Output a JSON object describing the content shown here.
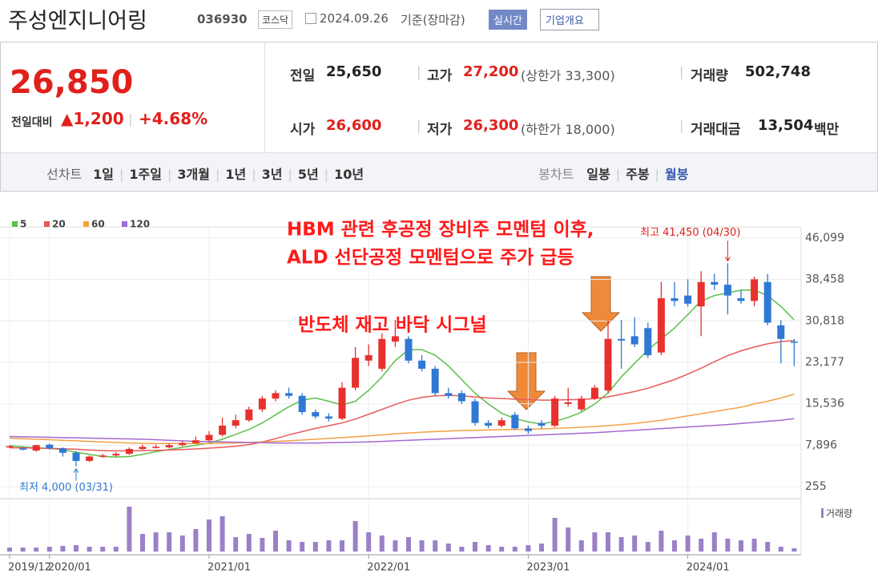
{
  "header": {
    "title": "주성엔지니어링",
    "code": "036930",
    "market": "코스닥",
    "date": "2024.09.26",
    "basis": "기준(장마감)",
    "realtime": "실시간",
    "company": "기업개요"
  },
  "quote": {
    "price": "26,850",
    "change_label": "전일대비",
    "change": "1,200",
    "change_pct": "+4.68%",
    "prev_label": "전일",
    "prev": "25,650",
    "high_label": "고가",
    "high": "27,200",
    "upper_limit": "(상한가 33,300)",
    "volume_label": "거래량",
    "volume": "502,748",
    "open_label": "시가",
    "open": "26,600",
    "low_label": "저가",
    "low": "26,300",
    "lower_limit": "(하한가 18,000)",
    "amount_label": "거래대금",
    "amount": "13,504",
    "amount_unit": "백만"
  },
  "tabs": {
    "line_label": "선차트",
    "line": [
      "1일",
      "1주일",
      "3개월",
      "1년",
      "3년",
      "5년",
      "10년"
    ],
    "candle_label": "봉차트",
    "candle": [
      "일봉",
      "주봉",
      "월봉"
    ]
  },
  "chart_data": {
    "type": "candlestick",
    "categories": [
      "2019/12",
      null,
      null,
      "2020/01",
      null,
      null,
      null,
      null,
      null,
      null,
      null,
      null,
      null,
      null,
      null,
      "2021/01",
      null,
      null,
      null,
      null,
      null,
      null,
      null,
      null,
      null,
      null,
      null,
      "2022/01",
      null,
      null,
      null,
      null,
      null,
      null,
      null,
      null,
      null,
      null,
      null,
      "2023/01",
      null,
      null,
      null,
      null,
      null,
      null,
      null,
      null,
      null,
      null,
      null,
      "2024/01",
      null,
      null,
      null,
      null,
      null,
      null,
      null,
      null
    ],
    "open": [
      7600,
      7300,
      6900,
      8000,
      7300,
      6500,
      5000,
      5800,
      6000,
      6300,
      7200,
      7600,
      7500,
      7900,
      8300,
      8800,
      9800,
      11500,
      12500,
      14500,
      16500,
      17500,
      17000,
      14000,
      13200,
      12800,
      18500,
      23500,
      22000,
      27000,
      27500,
      23500,
      22000,
      17500,
      17500,
      16000,
      12000,
      11500,
      13500,
      11000,
      12000,
      11500,
      15500,
      14500,
      16500,
      18000,
      27500,
      28000,
      29500,
      25000,
      35000,
      35500,
      33500,
      38000,
      37500,
      35000,
      34500,
      38000,
      30000,
      27000
    ],
    "high": [
      7900,
      7500,
      8000,
      8200,
      7500,
      6800,
      6000,
      6300,
      6600,
      7500,
      8000,
      8000,
      8200,
      8600,
      9500,
      10500,
      13000,
      13500,
      15000,
      17000,
      18000,
      18500,
      17500,
      14500,
      13800,
      19500,
      26000,
      26500,
      28500,
      31000,
      28000,
      24500,
      22500,
      18500,
      18000,
      16500,
      12500,
      13000,
      14000,
      11500,
      12500,
      17000,
      18500,
      17000,
      19000,
      31000,
      31000,
      31500,
      30500,
      38000,
      38000,
      38500,
      40000,
      39500,
      41450,
      36500,
      39000,
      39500,
      31000,
      27500
    ],
    "low": [
      7400,
      6900,
      6700,
      7100,
      5800,
      4000,
      4800,
      5600,
      5800,
      6100,
      7000,
      7300,
      7300,
      7700,
      8100,
      8600,
      9500,
      11000,
      12200,
      14000,
      16000,
      16500,
      13500,
      12800,
      12300,
      12500,
      18000,
      22500,
      21500,
      26000,
      23000,
      21500,
      17000,
      16500,
      15500,
      11500,
      11000,
      11200,
      10800,
      10000,
      11000,
      11200,
      15000,
      14200,
      16200,
      17500,
      22000,
      26000,
      24000,
      24500,
      33500,
      33500,
      28000,
      36500,
      32000,
      34000,
      33500,
      30000,
      23000,
      22500
    ],
    "close": [
      7700,
      7100,
      7900,
      7300,
      6500,
      5000,
      5800,
      6000,
      6300,
      7200,
      7600,
      7600,
      7900,
      8300,
      8800,
      9800,
      11500,
      12500,
      14500,
      16500,
      17500,
      17000,
      14000,
      13200,
      12800,
      18500,
      24000,
      24500,
      27500,
      28000,
      23500,
      22000,
      17500,
      17000,
      16000,
      12000,
      11500,
      12500,
      11000,
      10500,
      11500,
      16500,
      15800,
      16500,
      18500,
      27500,
      27200,
      26500,
      24500,
      35000,
      34500,
      34000,
      38000,
      37500,
      35500,
      34500,
      38500,
      30500,
      27500,
      26850
    ],
    "up_color": "#e8312e",
    "down_color": "#2f78d4",
    "series": [
      {
        "name": "5",
        "color": "#5bbf4a",
        "values": [
          7800,
          7600,
          7400,
          7300,
          7100,
          6600,
          6200,
          5800,
          5700,
          5800,
          6200,
          6700,
          7100,
          7500,
          7900,
          8300,
          9000,
          9900,
          10800,
          12000,
          13500,
          15000,
          16200,
          16600,
          16000,
          15300,
          16000,
          18000,
          20500,
          23500,
          25500,
          25500,
          24500,
          22500,
          20000,
          17500,
          15500,
          13800,
          12800,
          12200,
          11800,
          12300,
          13000,
          14000,
          15500,
          17500,
          20500,
          23000,
          25500,
          27500,
          29500,
          32000,
          34500,
          35500,
          36000,
          36500,
          36500,
          35500,
          33500,
          31000
        ]
      },
      {
        "name": "20",
        "color": "#e85a5a",
        "values": [
          7400,
          7400,
          7350,
          7300,
          7250,
          7150,
          7000,
          6900,
          6850,
          6850,
          6900,
          6950,
          7000,
          7100,
          7200,
          7350,
          7500,
          7700,
          8000,
          8500,
          9100,
          9800,
          10400,
          11000,
          11500,
          12000,
          12700,
          13600,
          14500,
          15400,
          16200,
          16700,
          17000,
          17100,
          17000,
          16800,
          16600,
          16500,
          16400,
          16300,
          16200,
          16200,
          16300,
          16300,
          16500,
          16800,
          17300,
          17800,
          18400,
          19200,
          20000,
          21000,
          22100,
          23300,
          24400,
          25300,
          26000,
          26600,
          27000,
          27200
        ]
      },
      {
        "name": "60",
        "color": "#f5a044",
        "values": [
          9200,
          9100,
          9000,
          8900,
          8800,
          8700,
          8600,
          8500,
          8400,
          8300,
          8250,
          8200,
          8200,
          8200,
          8200,
          8200,
          8250,
          8300,
          8400,
          8500,
          8600,
          8700,
          8850,
          9000,
          9150,
          9300,
          9450,
          9600,
          9800,
          10000,
          10150,
          10300,
          10400,
          10500,
          10600,
          10650,
          10700,
          10750,
          10800,
          10850,
          10900,
          11000,
          11100,
          11200,
          11350,
          11500,
          11700,
          11900,
          12200,
          12500,
          12900,
          13300,
          13700,
          14100,
          14500,
          14900,
          15500,
          16000,
          16600,
          17300
        ]
      },
      {
        "name": "120",
        "color": "#a468d0",
        "values": [
          9500,
          9450,
          9400,
          9350,
          9300,
          9250,
          9200,
          9150,
          9100,
          9050,
          9000,
          8900,
          8800,
          8700,
          8600,
          8550,
          8500,
          8450,
          8400,
          8350,
          8300,
          8300,
          8300,
          8300,
          8350,
          8400,
          8450,
          8500,
          8600,
          8700,
          8800,
          8900,
          9000,
          9100,
          9200,
          9300,
          9400,
          9500,
          9600,
          9700,
          9800,
          9900,
          10000,
          10100,
          10200,
          10350,
          10500,
          10650,
          10800,
          10950,
          11100,
          11250,
          11400,
          11550,
          11700,
          11900,
          12100,
          12300,
          12500,
          12800
        ]
      }
    ],
    "ylim": [
      255,
      46099
    ],
    "yticks": [
      {
        "value": 255,
        "label": "255"
      },
      {
        "value": 7896,
        "label": "7,896"
      },
      {
        "value": 15536,
        "label": "15,536"
      },
      {
        "value": 23177,
        "label": "23,177"
      },
      {
        "value": 30818,
        "label": "30,818"
      },
      {
        "value": 38458,
        "label": "38,458"
      },
      {
        "value": 46099,
        "label": "46,099"
      }
    ],
    "grid": true,
    "volume": {
      "name": "거래량",
      "color": "#9b80c8",
      "ylim": [
        0,
        60
      ],
      "values": [
        5,
        5,
        5,
        6,
        7,
        8,
        6,
        6,
        6,
        56,
        22,
        24,
        24,
        20,
        28,
        40,
        44,
        18,
        22,
        17,
        26,
        14,
        12,
        12,
        14,
        14,
        38,
        24,
        20,
        14,
        18,
        14,
        14,
        10,
        6,
        12,
        8,
        6,
        6,
        8,
        10,
        42,
        30,
        14,
        24,
        24,
        18,
        20,
        12,
        26,
        14,
        20,
        16,
        24,
        16,
        14,
        16,
        12,
        6,
        4
      ]
    },
    "annotations": [
      "HBM 관련 후공정 장비주 모멘텀 이후,",
      "ALD 선단공정 모멘텀으로 주가 급등",
      "반도체 재고 바닥 시그널"
    ],
    "max_label": "최고 41,450 (04/30)",
    "min_label": "최저 4,000 (03/31)"
  }
}
